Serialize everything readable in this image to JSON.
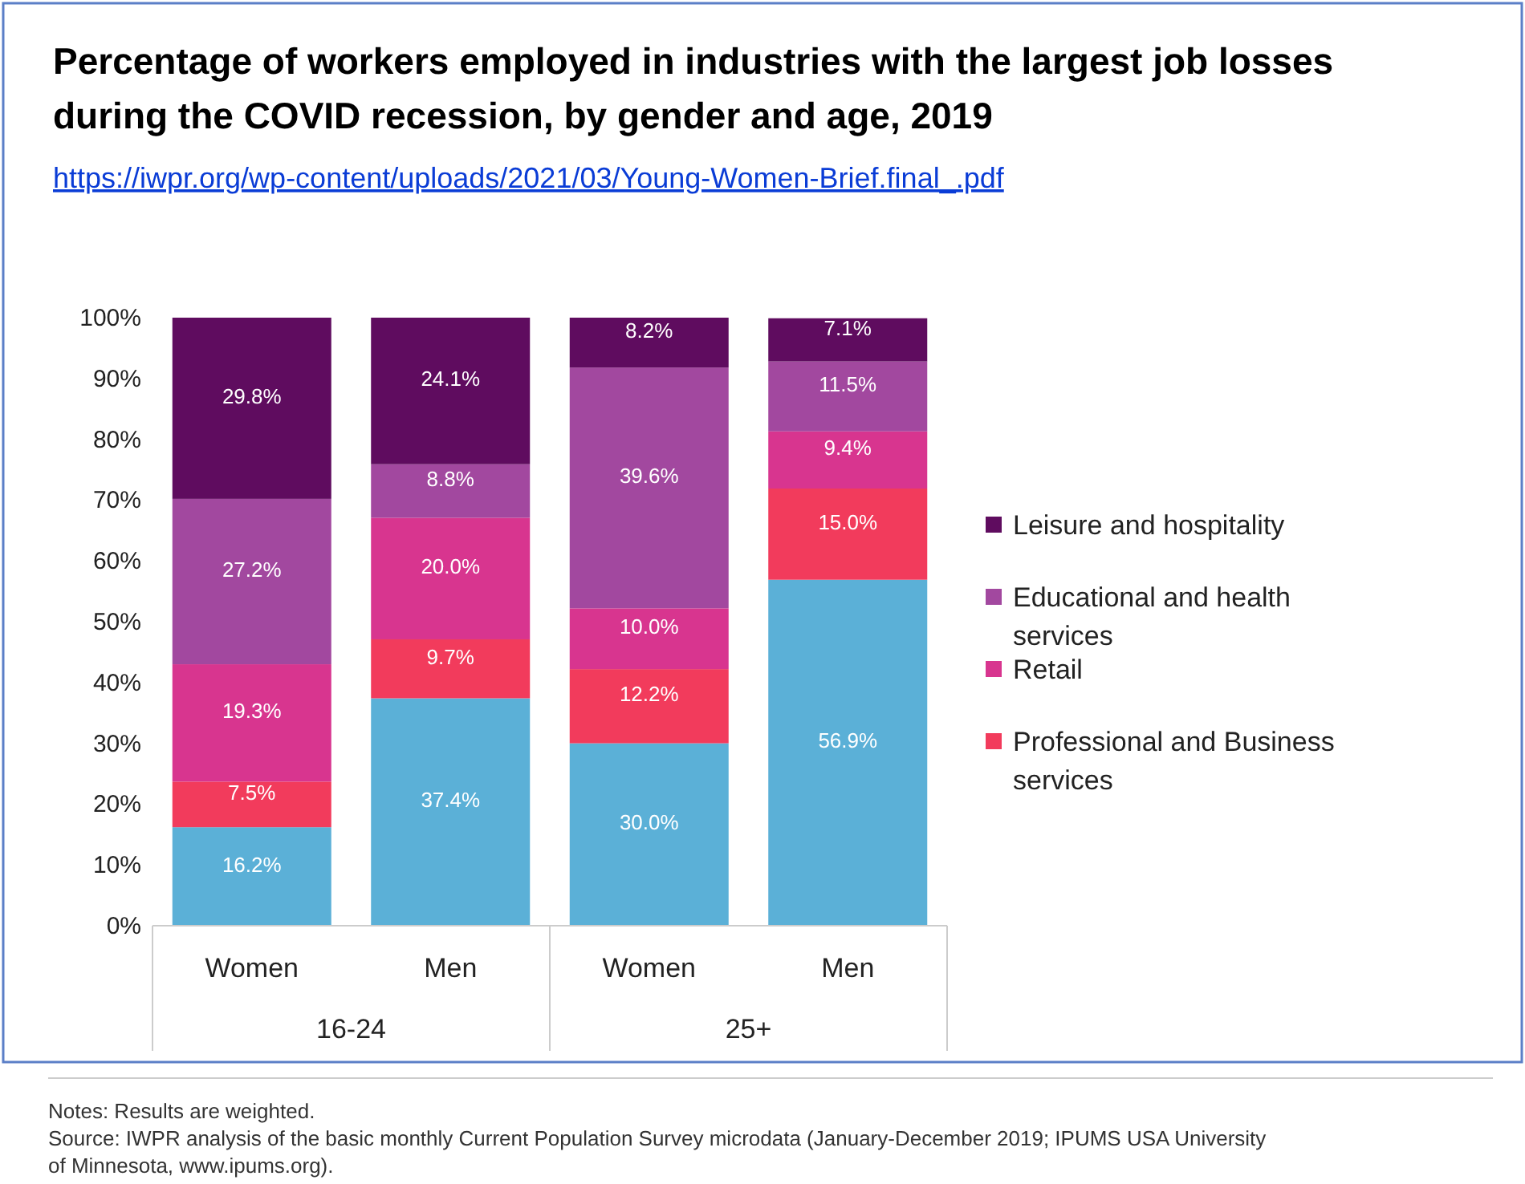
{
  "chart_data": {
    "type": "bar",
    "stacked": true,
    "title": "Percentage of workers employed in industries with the largest job losses during the COVID recession, by gender and age, 2019",
    "subtitle": "https://iwpr.org/wp-content/uploads/2021/03/Young-Women-Brief.final_.pdf",
    "categories": [
      "Women",
      "Men",
      "Women",
      "Men"
    ],
    "series": [
      {
        "color": "#5bb0d7",
        "values": [
          16.2,
          37.4,
          30.0,
          56.9
        ],
        "value_labels": [
          "16.2%",
          "37.4%",
          "30.0%",
          "56.9%"
        ]
      },
      {
        "name": "Professional and Business services",
        "color": "#f23b5c",
        "values": [
          7.5,
          9.7,
          12.2,
          15.0
        ],
        "value_labels": [
          "7.5%",
          "9.7%",
          "12.2%",
          "15.0%"
        ]
      },
      {
        "name": "Retail",
        "color": "#d8358f",
        "values": [
          19.3,
          20.0,
          10.0,
          9.4
        ],
        "value_labels": [
          "19.3%",
          "20.0%",
          "10.0%",
          "9.4%"
        ]
      },
      {
        "name": "Educational and health services",
        "color": "#a2489f",
        "values": [
          27.2,
          8.8,
          39.6,
          11.5
        ],
        "value_labels": [
          "27.2%",
          "8.8%",
          "39.6%",
          "11.5%"
        ]
      },
      {
        "name": "Leisure and hospitality",
        "color": "#5f0c5f",
        "values": [
          29.8,
          24.1,
          8.2,
          7.1
        ],
        "value_labels": [
          "29.8%",
          "24.1%",
          "8.2%",
          "7.1%"
        ]
      }
    ],
    "ylim": [
      0,
      100
    ],
    "yticks": [
      {
        "value": 0,
        "label": "0%"
      },
      {
        "value": 10,
        "label": "10%"
      },
      {
        "value": 20,
        "label": "20%"
      },
      {
        "value": 30,
        "label": "30%"
      },
      {
        "value": 40,
        "label": "40%"
      },
      {
        "value": 50,
        "label": "50%"
      },
      {
        "value": 60,
        "label": "60%"
      },
      {
        "value": 70,
        "label": "70%"
      },
      {
        "value": 80,
        "label": "80%"
      },
      {
        "value": 90,
        "label": "90%"
      },
      {
        "value": 100,
        "label": "100%"
      }
    ],
    "grid": false,
    "legend": "right",
    "annotations": [
      "16-24",
      "25+",
      "Notes: Results are weighted.",
      "Source: IWPR analysis of the basic monthly Current Population Survey microdata (January-December 2019; IPUMS USA University of Minnesota, www.ipums.org)."
    ]
  }
}
